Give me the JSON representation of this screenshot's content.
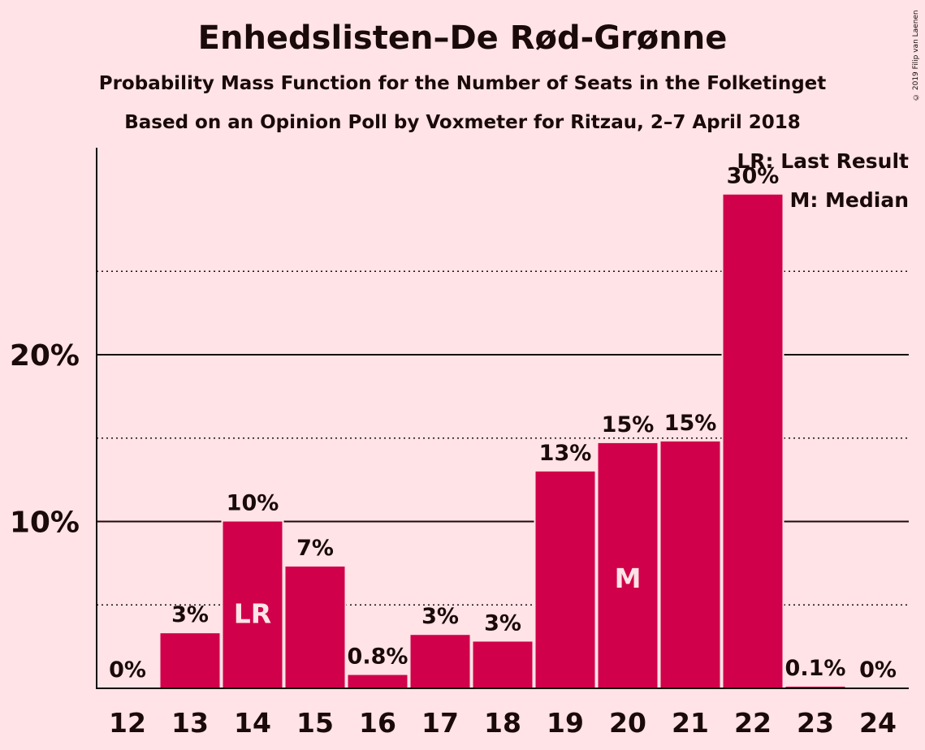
{
  "title": "Enhedslisten–De Rød-Grønne",
  "subtitle": "Probability Mass Function for the Number of Seats in the Folketinget",
  "subtitle2": "Based on an Opinion Poll by Voxmeter for Ritzau, 2–7 April 2018",
  "copyright": "© 2019 Filip van Laenen",
  "legend": {
    "lr": "LR: Last Result",
    "m": "M: Median"
  },
  "colors": {
    "bar": "#D0004A",
    "background": "#FFE3E6",
    "text": "#1a0a0a"
  },
  "chart_data": {
    "type": "bar",
    "categories": [
      "12",
      "13",
      "14",
      "15",
      "16",
      "17",
      "18",
      "19",
      "20",
      "21",
      "22",
      "23",
      "24"
    ],
    "values": [
      0,
      3.3,
      10.0,
      7.3,
      0.8,
      3.2,
      2.8,
      13.0,
      14.7,
      14.8,
      29.6,
      0.1,
      0
    ],
    "data_labels": [
      "0%",
      "3%",
      "10%",
      "7%",
      "0.8%",
      "3%",
      "3%",
      "13%",
      "15%",
      "15%",
      "30%",
      "0.1%",
      "0%"
    ],
    "bar_markers": {
      "14": "LR",
      "20": "M"
    },
    "ylim": [
      0,
      32
    ],
    "y_ticks": [
      {
        "value": 10,
        "label": "10%"
      },
      {
        "value": 20,
        "label": "20%"
      }
    ],
    "minor_gridlines": [
      5,
      15,
      25
    ],
    "xlabel": "",
    "ylabel": ""
  }
}
